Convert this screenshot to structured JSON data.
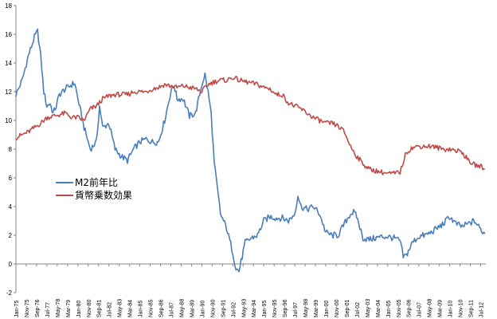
{
  "chart_data": {
    "type": "line",
    "title": "",
    "xlabel": "",
    "ylabel": "",
    "ylim": [
      -2,
      18
    ],
    "yticks": [
      -2,
      0,
      2,
      4,
      6,
      8,
      10,
      12,
      14,
      16,
      18
    ],
    "grid": false,
    "legend_position": "center-left",
    "x_tick_labels": [
      "Jan-75",
      "Nov-75",
      "Sep-76",
      "Jul-77",
      "May-78",
      "Mar-79",
      "Jan-80",
      "Nov-80",
      "Sep-81",
      "Jul-82",
      "May-83",
      "Mar-84",
      "Jan-85",
      "Nov-85",
      "Sep-86",
      "Jul-87",
      "May-88",
      "Mar-89",
      "Jan-90",
      "Nov-90",
      "Sep-91",
      "Jul-92",
      "May-93",
      "Mar-94",
      "Jan-95",
      "Nov-95",
      "Sep-96",
      "Jul-97",
      "May-98",
      "Mar-99",
      "Jan-00",
      "Nov-00",
      "Sep-01",
      "Jul-02",
      "May-03",
      "Mar-04",
      "Jan-05",
      "Nov-05",
      "Sep-06",
      "Jul-07",
      "May-08",
      "Mar-09",
      "Jan-10",
      "Nov-10",
      "Sep-11",
      "Jul-12"
    ],
    "series": [
      {
        "name": "M2前年比",
        "color": "#4a7ebb",
        "points": [
          [
            "Jan-75",
            11.8
          ],
          [
            "Jul-75",
            12.8
          ],
          [
            "Jan-76",
            14.5
          ],
          [
            "Jul-76",
            15.8
          ],
          [
            "Oct-76",
            16.2
          ],
          [
            "Jan-77",
            14.5
          ],
          [
            "Apr-77",
            12.0
          ],
          [
            "Jul-77",
            11.0
          ],
          [
            "Oct-77",
            11.2
          ],
          [
            "Jan-78",
            10.5
          ],
          [
            "Apr-78",
            11.0
          ],
          [
            "Jul-78",
            11.8
          ],
          [
            "Jan-79",
            12.2
          ],
          [
            "Jul-79",
            12.5
          ],
          [
            "Oct-79",
            12.6
          ],
          [
            "Jan-80",
            11.5
          ],
          [
            "Jul-80",
            9.5
          ],
          [
            "Jan-81",
            8.0
          ],
          [
            "Jul-81",
            8.5
          ],
          [
            "Oct-81",
            11.0
          ],
          [
            "Jan-82",
            9.5
          ],
          [
            "Jul-82",
            9.8
          ],
          [
            "Jan-83",
            8.0
          ],
          [
            "Jul-83",
            7.5
          ],
          [
            "Jan-84",
            7.2
          ],
          [
            "Jul-84",
            8.0
          ],
          [
            "Jan-85",
            8.5
          ],
          [
            "Jul-85",
            8.7
          ],
          [
            "Jan-86",
            8.5
          ],
          [
            "Jul-86",
            8.5
          ],
          [
            "Jan-87",
            10.0
          ],
          [
            "Jul-87",
            12.0
          ],
          [
            "Oct-87",
            12.5
          ],
          [
            "Jan-88",
            11.5
          ],
          [
            "Jul-88",
            11.5
          ],
          [
            "Jan-89",
            10.3
          ],
          [
            "Jul-89",
            10.5
          ],
          [
            "Jan-90",
            12.5
          ],
          [
            "Apr-90",
            13.2
          ],
          [
            "Jul-90",
            12.0
          ],
          [
            "Oct-90",
            10.5
          ],
          [
            "Jan-91",
            7.0
          ],
          [
            "Jul-91",
            3.5
          ],
          [
            "Jan-92",
            2.5
          ],
          [
            "Jul-92",
            0.8
          ],
          [
            "Oct-92",
            -0.3
          ],
          [
            "Jan-93",
            -0.5
          ],
          [
            "Apr-93",
            0.5
          ],
          [
            "Jul-93",
            1.5
          ],
          [
            "Jan-94",
            1.8
          ],
          [
            "Jul-94",
            2.0
          ],
          [
            "Jan-95",
            3.0
          ],
          [
            "Jul-95",
            3.3
          ],
          [
            "Jan-96",
            3.2
          ],
          [
            "Jul-96",
            3.2
          ],
          [
            "Jan-97",
            3.0
          ],
          [
            "Jul-97",
            3.5
          ],
          [
            "Oct-97",
            4.8
          ],
          [
            "Jan-98",
            4.0
          ],
          [
            "Jul-98",
            3.8
          ],
          [
            "Jan-99",
            4.0
          ],
          [
            "Jul-99",
            3.5
          ],
          [
            "Jan-00",
            2.2
          ],
          [
            "Jul-00",
            2.0
          ],
          [
            "Jan-01",
            2.0
          ],
          [
            "Jul-01",
            2.8
          ],
          [
            "Jan-02",
            3.5
          ],
          [
            "Apr-02",
            3.6
          ],
          [
            "Jul-02",
            3.3
          ],
          [
            "Jan-03",
            1.8
          ],
          [
            "Jul-03",
            1.7
          ],
          [
            "Jan-04",
            1.8
          ],
          [
            "Jul-04",
            1.9
          ],
          [
            "Jan-05",
            1.9
          ],
          [
            "Jul-05",
            1.8
          ],
          [
            "Jan-06",
            1.6
          ],
          [
            "Apr-06",
            0.5
          ],
          [
            "Jul-06",
            0.6
          ],
          [
            "Jan-07",
            1.5
          ],
          [
            "Jul-07",
            1.9
          ],
          [
            "Jan-08",
            2.0
          ],
          [
            "Jul-08",
            2.2
          ],
          [
            "Jan-09",
            2.5
          ],
          [
            "Jul-09",
            2.8
          ],
          [
            "Jan-10",
            3.3
          ],
          [
            "Jul-10",
            2.8
          ],
          [
            "Jan-11",
            2.6
          ],
          [
            "Jul-11",
            2.8
          ],
          [
            "Jan-12",
            3.0
          ],
          [
            "Jul-12",
            2.4
          ],
          [
            "Nov-12",
            2.1
          ]
        ]
      },
      {
        "name": "貨幣乗数効果",
        "color": "#be4b48",
        "points": [
          [
            "Jan-75",
            8.8
          ],
          [
            "Jul-75",
            9.0
          ],
          [
            "Jan-76",
            9.2
          ],
          [
            "Jul-76",
            9.5
          ],
          [
            "Jan-77",
            9.8
          ],
          [
            "Jul-77",
            10.2
          ],
          [
            "Jan-78",
            10.3
          ],
          [
            "Jul-78",
            10.4
          ],
          [
            "Jan-79",
            10.5
          ],
          [
            "Jul-79",
            10.2
          ],
          [
            "Jan-80",
            10.2
          ],
          [
            "Jul-80",
            10.0
          ],
          [
            "Jan-81",
            10.8
          ],
          [
            "Jul-81",
            11.0
          ],
          [
            "Jan-82",
            11.5
          ],
          [
            "Jul-82",
            11.7
          ],
          [
            "Jan-83",
            11.8
          ],
          [
            "Jul-83",
            11.8
          ],
          [
            "Jan-84",
            11.8
          ],
          [
            "Jul-84",
            12.0
          ],
          [
            "Jan-85",
            12.0
          ],
          [
            "Jul-85",
            12.0
          ],
          [
            "Jan-86",
            12.2
          ],
          [
            "Jul-86",
            12.3
          ],
          [
            "Jan-87",
            12.5
          ],
          [
            "Jul-87",
            12.4
          ],
          [
            "Jan-88",
            12.3
          ],
          [
            "Jul-88",
            12.4
          ],
          [
            "Jan-89",
            12.3
          ],
          [
            "Jul-89",
            12.2
          ],
          [
            "Jan-90",
            12.0
          ],
          [
            "Jul-90",
            12.5
          ],
          [
            "Jan-91",
            12.7
          ],
          [
            "Jul-91",
            12.8
          ],
          [
            "Jan-92",
            12.8
          ],
          [
            "Jul-92",
            13.0
          ],
          [
            "Jan-93",
            12.8
          ],
          [
            "Jul-93",
            12.7
          ],
          [
            "Jan-94",
            12.6
          ],
          [
            "Jul-94",
            12.5
          ],
          [
            "Jan-95",
            12.3
          ],
          [
            "Jul-95",
            12.2
          ],
          [
            "Jan-96",
            11.8
          ],
          [
            "Jul-96",
            11.8
          ],
          [
            "Jan-97",
            11.2
          ],
          [
            "Jul-97",
            11.0
          ],
          [
            "Jan-98",
            10.8
          ],
          [
            "Jul-98",
            10.5
          ],
          [
            "Jan-99",
            10.2
          ],
          [
            "Jul-99",
            10.0
          ],
          [
            "Jan-00",
            9.8
          ],
          [
            "Jul-00",
            9.8
          ],
          [
            "Jan-01",
            9.6
          ],
          [
            "Jul-01",
            9.2
          ],
          [
            "Jan-02",
            8.2
          ],
          [
            "Jul-02",
            7.5
          ],
          [
            "Jan-03",
            7.0
          ],
          [
            "Jul-03",
            6.6
          ],
          [
            "Jan-04",
            6.5
          ],
          [
            "Jul-04",
            6.4
          ],
          [
            "Jan-05",
            6.3
          ],
          [
            "Jul-05",
            6.3
          ],
          [
            "Jan-06",
            6.4
          ],
          [
            "Jul-06",
            7.8
          ],
          [
            "Jan-07",
            8.1
          ],
          [
            "Jul-07",
            8.2
          ],
          [
            "Jan-08",
            8.2
          ],
          [
            "Jul-08",
            8.2
          ],
          [
            "Jan-09",
            8.1
          ],
          [
            "Jul-09",
            8.0
          ],
          [
            "Jan-10",
            8.0
          ],
          [
            "Jul-10",
            7.9
          ],
          [
            "Jan-11",
            7.8
          ],
          [
            "Jul-11",
            7.2
          ],
          [
            "Jan-12",
            6.9
          ],
          [
            "Jul-12",
            6.8
          ],
          [
            "Nov-12",
            6.6
          ]
        ]
      }
    ]
  }
}
